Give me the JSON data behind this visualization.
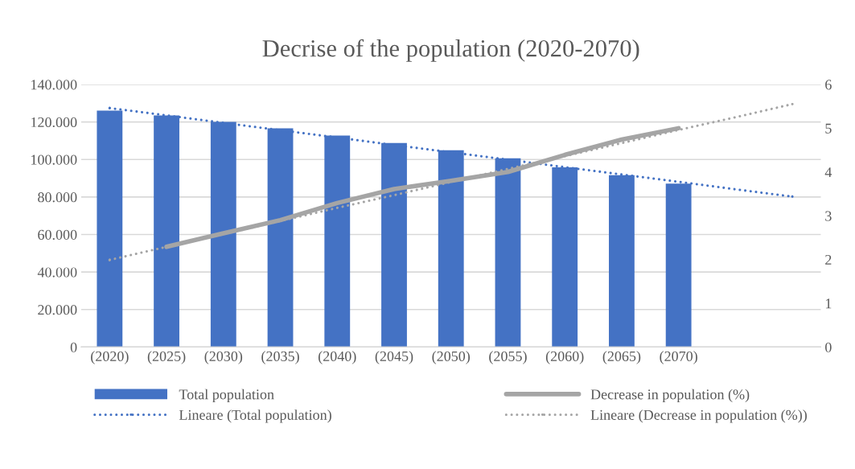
{
  "chart_data": {
    "type": "bar",
    "title": "Decrise of the population (2020-2070)",
    "categories": [
      "(2020)",
      "(2025)",
      "(2030)",
      "(2035)",
      "(2040)",
      "(2045)",
      "(2050)",
      "(2055)",
      "(2060)",
      "(2065)",
      "(2070)",
      null,
      null
    ],
    "series": [
      {
        "name": "Total population",
        "color": "#4472c4",
        "values": [
          126000,
          123500,
          120000,
          116600,
          112700,
          108800,
          104900,
          100600,
          95800,
          91600,
          87100,
          null,
          null
        ]
      },
      {
        "name": "Lineare (Total population)",
        "type": "line",
        "line_style": "dotted",
        "color": "#4472c4",
        "values": [
          127400,
          123500,
          119500,
          115600,
          111700,
          107700,
          103800,
          99900,
          95900,
          92000,
          88100,
          84100,
          80200
        ]
      },
      {
        "name": "Decrease in population (%)",
        "type": "line",
        "line_style": "solid",
        "axis": "y2",
        "color": "#a5a5a5",
        "values": [
          null,
          2.29,
          2.6,
          2.9,
          3.29,
          3.61,
          3.8,
          4.0,
          4.39,
          4.74,
          5.0,
          null,
          null
        ]
      },
      {
        "name": "Lineare (Decrease in population (%))",
        "type": "line",
        "line_style": "dotted",
        "axis": "y2",
        "color": "#a5a5a5",
        "values": [
          1.99,
          2.29,
          2.58,
          2.88,
          3.18,
          3.47,
          3.77,
          4.07,
          4.36,
          4.66,
          4.96,
          5.25,
          5.55
        ]
      }
    ],
    "ylim": [
      0,
      140000
    ],
    "yticks": [
      0,
      {
        "value": 20000,
        "label": "20.000"
      },
      {
        "value": 40000,
        "label": "40.000"
      },
      {
        "value": 60000,
        "label": "60.000"
      },
      {
        "value": 80000,
        "label": "80.000"
      },
      {
        "value": 100000,
        "label": "100.000"
      },
      {
        "value": 120000,
        "label": "120.000"
      },
      {
        "value": 140000,
        "label": "140.000"
      }
    ],
    "y2lim": [
      0,
      6
    ],
    "y2ticks": [
      0,
      1,
      2,
      3,
      4,
      5,
      6
    ],
    "grid": "y",
    "legend": "bottom"
  }
}
